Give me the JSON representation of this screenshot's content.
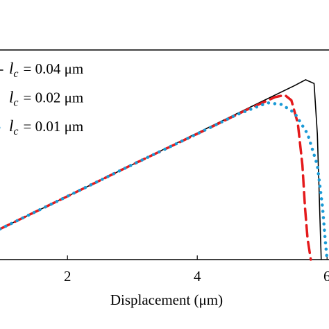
{
  "chart_data": {
    "type": "line",
    "xlabel": "Displacement (μm)",
    "xlim": [
      0.96,
      6.03
    ],
    "xticks": [
      2,
      4,
      6
    ],
    "ylim": [
      0,
      1
    ],
    "series": [
      {
        "name_symbol": "l",
        "name_sub": "c",
        "name_rest": "= 0.04 μm",
        "color": "#000000",
        "style": "solid",
        "x": [
          0.96,
          2,
          3,
          4,
          5,
          5.5,
          5.67,
          5.8,
          5.85,
          5.88,
          5.91
        ],
        "values": [
          0.146,
          0.302,
          0.453,
          0.604,
          0.755,
          0.83,
          0.858,
          0.84,
          0.6,
          0.3,
          0
        ]
      },
      {
        "name_symbol": "l",
        "name_sub": "c",
        "name_rest": "= 0.02 μm",
        "color": "#e41a1c",
        "style": "dashed",
        "x": [
          0.96,
          2,
          3,
          4,
          4.8,
          5.2,
          5.35,
          5.45,
          5.55,
          5.62,
          5.66,
          5.7,
          5.75
        ],
        "values": [
          0.146,
          0.302,
          0.453,
          0.6,
          0.72,
          0.775,
          0.785,
          0.76,
          0.65,
          0.45,
          0.25,
          0.1,
          0
        ]
      },
      {
        "name_symbol": "l",
        "name_sub": "c",
        "name_rest": "= 0.01 μm",
        "color": "#1a9ad6",
        "style": "dotted",
        "x": [
          0.96,
          2,
          3,
          4,
          4.6,
          5.08,
          5.3,
          5.5,
          5.7,
          5.85,
          5.93,
          5.97,
          6.0
        ],
        "values": [
          0.146,
          0.302,
          0.453,
          0.6,
          0.69,
          0.748,
          0.74,
          0.7,
          0.6,
          0.45,
          0.25,
          0.1,
          0
        ]
      }
    ]
  }
}
